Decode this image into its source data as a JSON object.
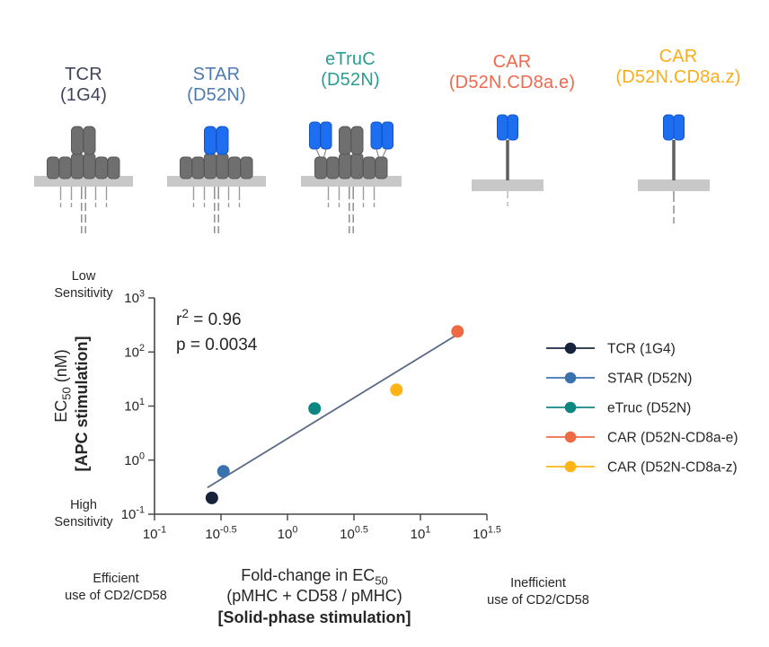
{
  "receptors": [
    {
      "name": "TCR",
      "subtitle": "(1G4)",
      "label_color": "#3f4458"
    },
    {
      "name": "STAR",
      "subtitle": "(D52N)",
      "label_color": "#4d7ab5"
    },
    {
      "name": "eTruC",
      "subtitle": "(D52N)",
      "label_color": "#2a9d93"
    },
    {
      "name": "CAR",
      "subtitle": "(D52N.CD8a.e)",
      "label_color": "#f1694c"
    },
    {
      "name": "CAR",
      "subtitle": "(D52N.CD8a.z)",
      "label_color": "#fbad18"
    }
  ],
  "chart_data": {
    "type": "scatter",
    "x_scale": "log",
    "y_scale": "log",
    "xlim": [
      0.1,
      31.62
    ],
    "ylim": [
      0.1,
      1000
    ],
    "grid": false,
    "legend_position": "right",
    "x_ticks": [
      {
        "value": 0.1,
        "label": "10^{-1}"
      },
      {
        "value": 0.31623,
        "label": "10^{-0.5}"
      },
      {
        "value": 1,
        "label": "10^{0}"
      },
      {
        "value": 3.1623,
        "label": "10^{0.5}"
      },
      {
        "value": 10,
        "label": "10^{1}"
      },
      {
        "value": 31.623,
        "label": "10^{1.5}"
      }
    ],
    "y_ticks": [
      {
        "value": 0.1,
        "label": "10^{-1}"
      },
      {
        "value": 1,
        "label": "10^{0}"
      },
      {
        "value": 10,
        "label": "10^{1}"
      },
      {
        "value": 100,
        "label": "10^{2}"
      },
      {
        "value": 1000,
        "label": "10^{3}"
      }
    ],
    "xlabel_lines": [
      "Fold-change in EC_{50}",
      "(pMHC + CD58 / pMHC)",
      "[Solid-phase stimulation]"
    ],
    "ylabel_lines": [
      "EC_{50} (nM)",
      "[APC stimulation]"
    ],
    "annotation_lines": [
      "r^{2} = 0.96",
      "p = 0.0034"
    ],
    "series": [
      {
        "name": "TCR (1G4)",
        "color": "#17233d",
        "x": 0.27,
        "y": 0.2
      },
      {
        "name": "STAR (D52N)",
        "color": "#3a72ae",
        "x": 0.33,
        "y": 0.62
      },
      {
        "name": "eTruc (D52N)",
        "color": "#0c8681",
        "x": 1.6,
        "y": 9
      },
      {
        "name": "CAR (D52N-CD8a-e)",
        "color": "#ee6a45",
        "x": 19,
        "y": 240
      },
      {
        "name": "CAR (D52N-CD8a-z)",
        "color": "#fdb414",
        "x": 6.6,
        "y": 20
      }
    ],
    "trendline": {
      "x1": 0.25,
      "y1": 0.31,
      "x2": 19.8,
      "y2": 225,
      "color": "#5c6a87"
    }
  },
  "annotations": {
    "low_sensitivity": [
      "Low",
      "Sensitivity"
    ],
    "high_sensitivity": [
      "High",
      "Sensitivity"
    ],
    "efficient": [
      "Efficient",
      "use of CD2/CD58"
    ],
    "inefficient": [
      "Inefficient",
      "use of CD2/CD58"
    ]
  }
}
